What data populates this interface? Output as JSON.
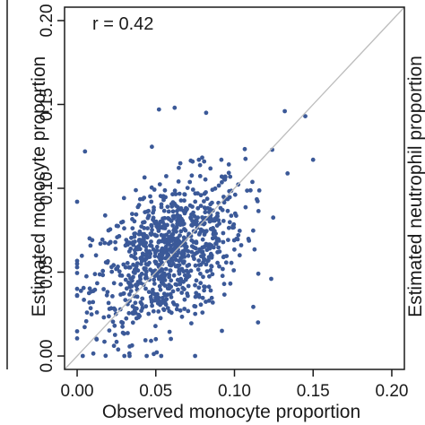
{
  "chart_data": {
    "type": "scatter",
    "title": "",
    "annotation": "r = 0.42",
    "xlabel": "Observed monocyte proportion",
    "ylabel": "Estimated monocyte proportion",
    "right_panel_ylabel_fragment": "Estimated neutrophil proportion",
    "xlim": [
      -0.008,
      0.208
    ],
    "ylim": [
      -0.008,
      0.208
    ],
    "xticks": [
      "0.00",
      "0.05",
      "0.10",
      "0.15",
      "0.20"
    ],
    "yticks": [
      "0.00",
      "0.05",
      "0.10",
      "0.15",
      "0.20"
    ],
    "reference_line": "y = x",
    "point_color": "#3b5998",
    "line_color": "#bdbdbd",
    "grid": false,
    "legend": "none",
    "n_points": 900,
    "sample_points": [
      [
        0.005,
        0.122
      ],
      [
        0.052,
        0.147
      ],
      [
        0.062,
        0.148
      ],
      [
        0.082,
        0.145
      ],
      [
        0.132,
        0.146
      ],
      [
        0.145,
        0.143
      ],
      [
        0.124,
        0.123
      ],
      [
        0.15,
        0.117
      ],
      [
        0.0,
        0.092
      ],
      [
        0.0,
        0.04
      ],
      [
        0.0,
        0.055
      ],
      [
        0.03,
        0.0
      ],
      [
        0.075,
        0.0
      ],
      [
        0.092,
        0.015
      ],
      [
        0.05,
        0.01
      ],
      [
        0.115,
        0.02
      ],
      [
        0.012,
        0.06
      ],
      [
        0.035,
        0.045
      ],
      [
        0.06,
        0.07
      ],
      [
        0.08,
        0.08
      ]
    ]
  }
}
